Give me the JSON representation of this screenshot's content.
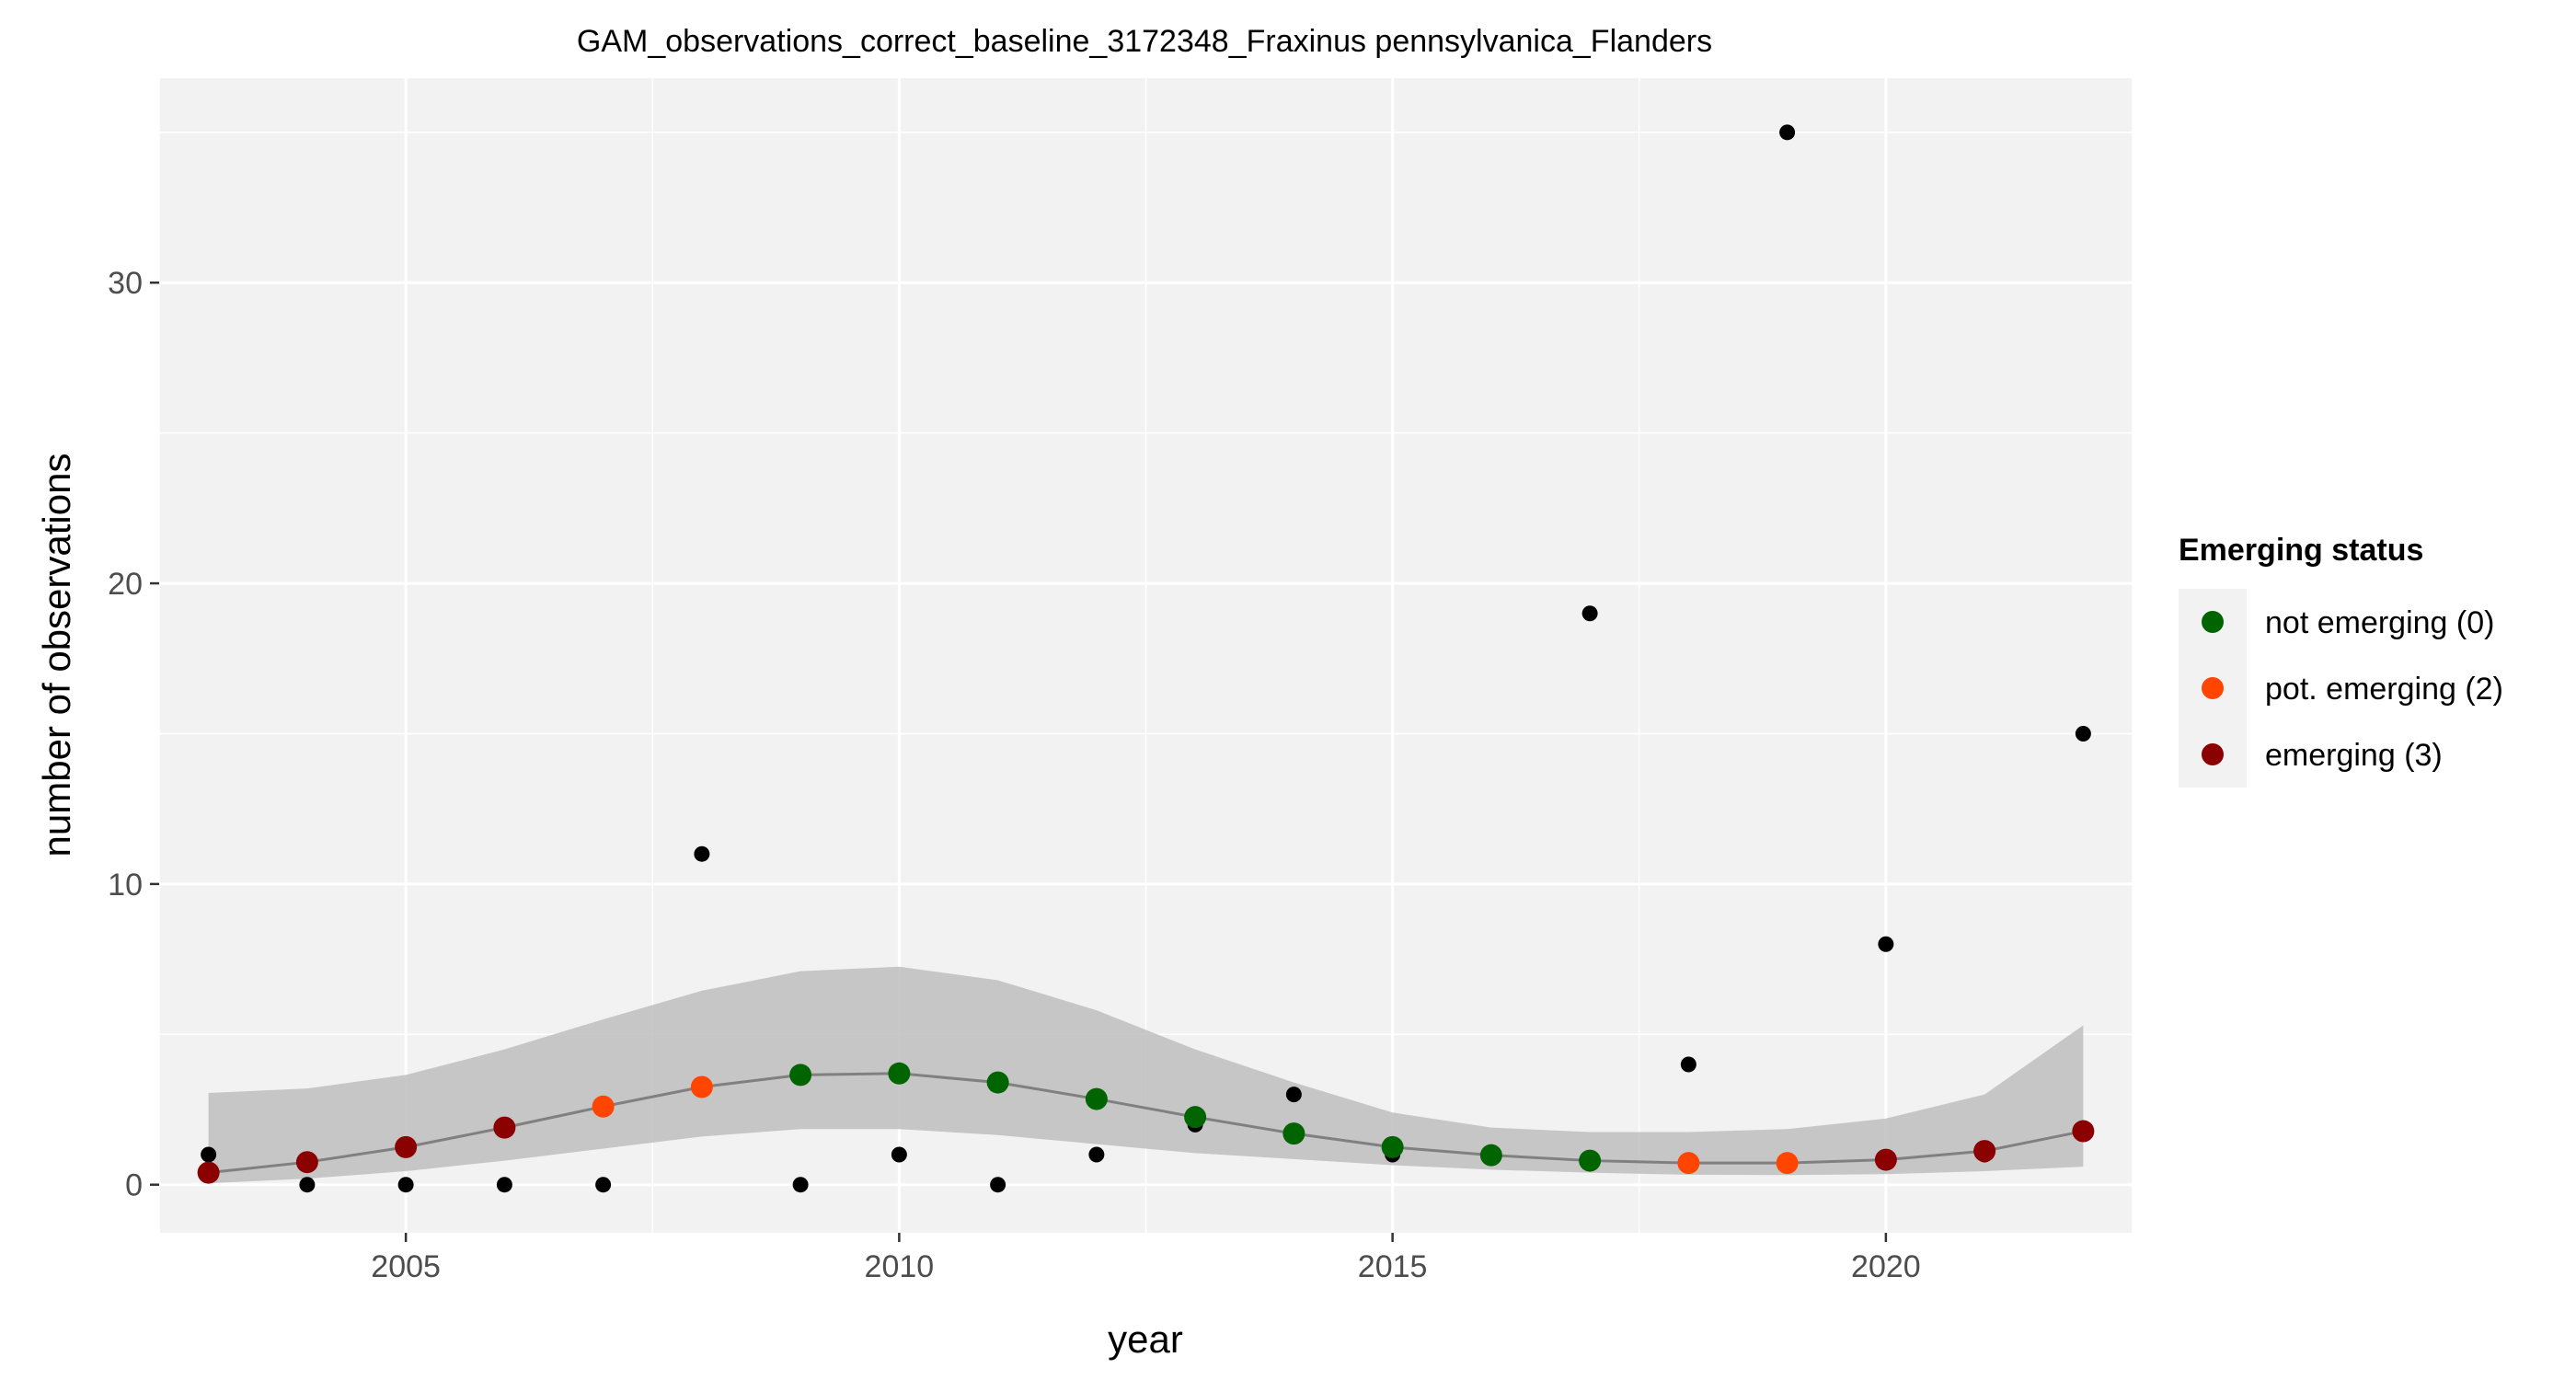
{
  "chart_data": {
    "type": "scatter",
    "title": "GAM_observations_correct_baseline_3172348_Fraxinus pennsylvanica_Flanders",
    "xlabel": "year",
    "ylabel": "number of observations",
    "xlim": [
      2002.5,
      2022.5
    ],
    "ylim": [
      -1.6,
      36.8
    ],
    "x_ticks": [
      2005,
      2010,
      2015,
      2020
    ],
    "y_ticks": [
      0,
      10,
      20,
      30
    ],
    "grid": true,
    "legend_position": "right",
    "legend_title": "Emerging status",
    "observations": {
      "x": [
        2003,
        2004,
        2005,
        2006,
        2007,
        2008,
        2009,
        2010,
        2011,
        2012,
        2013,
        2014,
        2015,
        2017,
        2018,
        2019,
        2020,
        2021,
        2022
      ],
      "y": [
        1,
        0,
        0,
        0,
        0,
        11,
        0,
        1,
        0,
        1,
        2,
        3,
        1,
        19,
        4,
        35,
        8,
        1,
        15
      ]
    },
    "gam_fit": {
      "x": [
        2003,
        2004,
        2005,
        2006,
        2007,
        2008,
        2009,
        2010,
        2011,
        2012,
        2013,
        2014,
        2015,
        2016,
        2017,
        2018,
        2019,
        2020,
        2021,
        2022
      ],
      "y": [
        0.4,
        0.75,
        1.25,
        1.9,
        2.6,
        3.25,
        3.65,
        3.7,
        3.4,
        2.85,
        2.25,
        1.7,
        1.25,
        0.98,
        0.8,
        0.72,
        0.72,
        0.83,
        1.12,
        1.78
      ],
      "lower": [
        0.05,
        0.2,
        0.45,
        0.8,
        1.2,
        1.6,
        1.85,
        1.85,
        1.65,
        1.35,
        1.05,
        0.85,
        0.65,
        0.5,
        0.4,
        0.33,
        0.32,
        0.35,
        0.45,
        0.6
      ],
      "upper": [
        3.05,
        3.2,
        3.65,
        4.5,
        5.5,
        6.45,
        7.1,
        7.25,
        6.8,
        5.8,
        4.5,
        3.4,
        2.4,
        1.9,
        1.75,
        1.75,
        1.85,
        2.2,
        3.0,
        5.3
      ],
      "status": [
        3,
        3,
        3,
        3,
        2,
        2,
        0,
        0,
        0,
        0,
        0,
        0,
        0,
        0,
        0,
        2,
        2,
        3,
        3,
        3
      ]
    },
    "legend": [
      {
        "status": 0,
        "label": "not emerging (0)",
        "color": "#006400"
      },
      {
        "status": 2,
        "label": "pot. emerging (2)",
        "color": "#FF4500"
      },
      {
        "status": 3,
        "label": "emerging (3)",
        "color": "#8B0000"
      }
    ],
    "colors": {
      "panel_background": "#F2F2F2",
      "grid": "#FFFFFF",
      "ribbon": "#BEBEBE",
      "fit_line": "#808080",
      "observation_point": "#000000"
    }
  }
}
